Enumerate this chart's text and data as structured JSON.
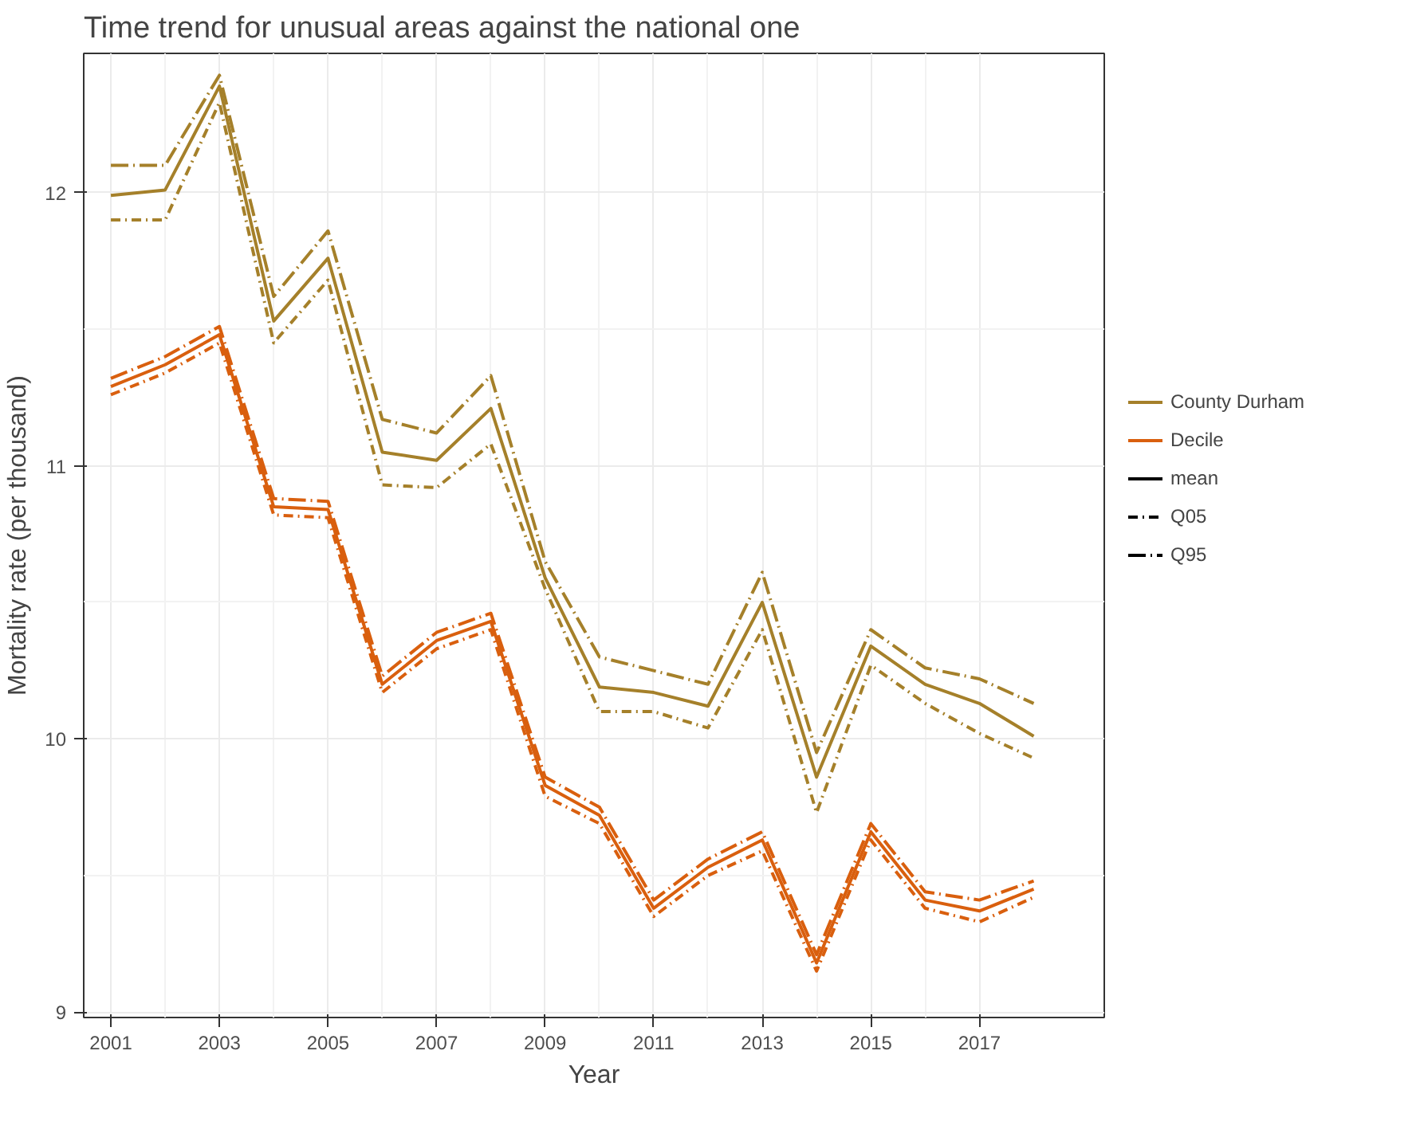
{
  "chart_data": {
    "type": "line",
    "title": "Time trend for unusual areas against the national one",
    "xlabel": "Year",
    "ylabel": "Mortality rate (per thousand)",
    "x": [
      2001,
      2002,
      2003,
      2004,
      2005,
      2006,
      2007,
      2008,
      2009,
      2010,
      2011,
      2012,
      2013,
      2014,
      2015,
      2016,
      2017,
      2018
    ],
    "series": [
      {
        "name": "County Durham",
        "color": "#a5802a",
        "line_style": "solid",
        "values": [
          11.99,
          12.01,
          12.39,
          11.53,
          11.76,
          11.05,
          11.02,
          11.21,
          10.59,
          10.19,
          10.17,
          10.12,
          10.5,
          9.86,
          10.34,
          10.2,
          10.13,
          10.01
        ]
      },
      {
        "color": "#a5802a",
        "line_style": "dashdot",
        "values": [
          11.9,
          11.9,
          12.33,
          11.45,
          11.68,
          10.93,
          10.92,
          11.08,
          10.55,
          10.1,
          10.1,
          10.04,
          10.4,
          9.73,
          10.27,
          10.13,
          10.02,
          9.93
        ]
      },
      {
        "color": "#a5802a",
        "line_style": "longdashdot",
        "values": [
          12.1,
          12.1,
          12.43,
          11.62,
          11.86,
          11.17,
          11.12,
          11.33,
          10.65,
          10.3,
          10.25,
          10.2,
          10.61,
          9.95,
          10.4,
          10.26,
          10.22,
          10.13
        ]
      },
      {
        "name": "Decile",
        "color": "#d95f0e",
        "line_style": "solid",
        "values": [
          11.29,
          11.37,
          11.48,
          10.85,
          10.84,
          10.2,
          10.36,
          10.43,
          9.83,
          9.72,
          9.38,
          9.53,
          9.63,
          9.18,
          9.66,
          9.41,
          9.37,
          9.45
        ]
      },
      {
        "color": "#d95f0e",
        "line_style": "dashdot",
        "values": [
          11.26,
          11.34,
          11.45,
          10.82,
          10.81,
          10.17,
          10.33,
          10.4,
          9.79,
          9.69,
          9.35,
          9.5,
          9.59,
          9.15,
          9.63,
          9.38,
          9.33,
          9.42
        ]
      },
      {
        "color": "#d95f0e",
        "line_style": "longdashdot",
        "values": [
          11.32,
          11.4,
          11.51,
          10.88,
          10.87,
          10.23,
          10.39,
          10.46,
          9.86,
          9.75,
          9.41,
          9.56,
          9.66,
          9.21,
          9.69,
          9.44,
          9.41,
          9.48
        ]
      }
    ],
    "annotations": [
      "mean",
      "Q05",
      "Q95"
    ],
    "xlim": [
      2000.5,
      2019.3
    ],
    "ylim": [
      8.98,
      12.51
    ],
    "xticks": [
      2001,
      2003,
      2005,
      2007,
      2009,
      2011,
      2013,
      2015,
      2017
    ],
    "yticks": [
      9,
      10,
      11,
      12
    ],
    "grid": true,
    "legend": "right",
    "marker": "none"
  }
}
